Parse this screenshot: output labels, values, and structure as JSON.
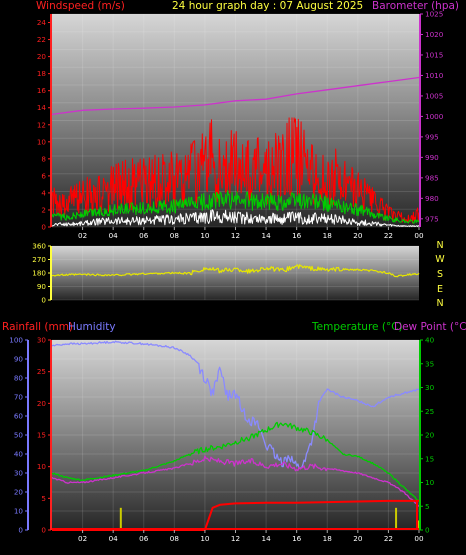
{
  "header": {
    "wind_label": "Windspeed (m/s)",
    "title": "24 hour graph day : 07 August 2025",
    "baro_label": "Barometer (hpa)",
    "rain_label": "Rainfall (mm)",
    "hum_label": "Humidity",
    "temp_label": "Temperature (°C)",
    "dew_label": "Dew Point (°C)"
  },
  "compass": [
    "N",
    "W",
    "S",
    "E",
    "N"
  ],
  "colors": {
    "wind_gust": "#ff0000",
    "wind_avg": "#00cc00",
    "wind_min": "#ffffff",
    "barometer": "#cc33cc",
    "direction": "#e6e600",
    "rainfall": "#ff0000",
    "humidity": "#8a8aff",
    "temperature": "#00cc00",
    "dew_point": "#cc33cc",
    "rain_marker": "#cccc00"
  },
  "chart_data": [
    {
      "type": "line",
      "x_ticks": [
        "02",
        "04",
        "06",
        "08",
        "10",
        "12",
        "14",
        "16",
        "18",
        "20",
        "22",
        "00"
      ],
      "xlim": [
        0,
        24
      ],
      "ylabel": "Windspeed (m/s)",
      "y2label": "Barometer (hpa)",
      "y_ticks": [
        "0",
        "2",
        "4",
        "6",
        "8",
        "10",
        "12",
        "14",
        "16",
        "18",
        "20",
        "22",
        "24"
      ],
      "ylim": [
        0,
        25
      ],
      "y2_ticks": [
        "975",
        "980",
        "985",
        "990",
        "995",
        "1000",
        "1005",
        "1010",
        "1015",
        "1020",
        "1025"
      ],
      "y2lim": [
        973,
        1025
      ],
      "series": [
        {
          "name": "gust",
          "x": [
            0,
            1,
            2,
            3,
            4,
            5,
            6,
            7,
            8,
            9,
            9.5,
            10,
            10.5,
            11,
            11.5,
            12,
            12.5,
            13,
            13.5,
            14,
            14.5,
            15,
            15.5,
            16,
            16.5,
            17,
            17.5,
            18,
            18.5,
            19,
            19.5,
            20,
            21,
            22,
            23,
            23.5,
            24
          ],
          "values": [
            3,
            2.8,
            3.5,
            4,
            4.5,
            5,
            5,
            5.5,
            5.5,
            6,
            6.5,
            7,
            8,
            7,
            8.5,
            7,
            7,
            6,
            7,
            6,
            7,
            6.5,
            8,
            8,
            7.5,
            6,
            5.5,
            5,
            6,
            5,
            4.5,
            4,
            3,
            1.5,
            1,
            1,
            1.5
          ]
        },
        {
          "name": "avg",
          "x": [
            0,
            1,
            2,
            3,
            4,
            5,
            6,
            7,
            8,
            9,
            10,
            11,
            12,
            13,
            14,
            15,
            16,
            17,
            18,
            19,
            20,
            21,
            22,
            23,
            24
          ],
          "values": [
            1.2,
            1.2,
            1.5,
            1.8,
            2.0,
            2.1,
            2.2,
            2.3,
            2.4,
            2.6,
            3.0,
            3.2,
            3.2,
            3.0,
            3.0,
            2.9,
            3.2,
            3.0,
            2.7,
            2.4,
            2.0,
            1.6,
            1.0,
            0.7,
            0.6
          ]
        },
        {
          "name": "min",
          "x": [
            0,
            1,
            2,
            3,
            4,
            5,
            6,
            7,
            8,
            9,
            10,
            11,
            12,
            13,
            14,
            15,
            16,
            17,
            18,
            19,
            20,
            21,
            22,
            23,
            24
          ],
          "values": [
            0.3,
            0.3,
            0.4,
            0.6,
            0.7,
            0.7,
            0.8,
            0.8,
            0.9,
            1.0,
            1.2,
            1.2,
            1.1,
            1.0,
            1.0,
            1.0,
            1.1,
            1.0,
            0.9,
            0.8,
            0.6,
            0.4,
            0.2,
            0.1,
            0.1
          ]
        },
        {
          "name": "barometer",
          "axis": "y2",
          "x": [
            0,
            2,
            4,
            6,
            8,
            10,
            12,
            14,
            16,
            18,
            20,
            22,
            24
          ],
          "values": [
            1000.5,
            1001.5,
            1001.8,
            1002.0,
            1002.3,
            1002.8,
            1003.8,
            1004.2,
            1005.5,
            1006.5,
            1007.5,
            1008.5,
            1009.5
          ]
        }
      ]
    },
    {
      "type": "line",
      "x_ticks": [
        "02",
        "04",
        "06",
        "08",
        "10",
        "12",
        "14",
        "16",
        "18",
        "20",
        "22",
        "00"
      ],
      "xlim": [
        0,
        24
      ],
      "ylabel": "Wind direction",
      "y_ticks": [
        "0",
        "90",
        "180",
        "270",
        "360"
      ],
      "ylim": [
        0,
        360
      ],
      "series": [
        {
          "name": "direction",
          "x": [
            0,
            2,
            4,
            6,
            8,
            9,
            10,
            11,
            12,
            13,
            14,
            15,
            16,
            17,
            18,
            19,
            20,
            21,
            22,
            22.5,
            23,
            24
          ],
          "values": [
            165,
            170,
            165,
            175,
            180,
            178,
            210,
            195,
            205,
            190,
            215,
            195,
            225,
            210,
            200,
            205,
            200,
            195,
            180,
            155,
            165,
            175
          ]
        }
      ]
    },
    {
      "type": "line",
      "x_ticks": [
        "02",
        "04",
        "06",
        "08",
        "10",
        "12",
        "14",
        "16",
        "18",
        "20",
        "22",
        "00"
      ],
      "xlim": [
        0,
        24
      ],
      "ylabel": "Rainfall (mm)",
      "y_ticks": [
        "0",
        "5",
        "10",
        "15",
        "20",
        "25",
        "30"
      ],
      "ylim": [
        0,
        30
      ],
      "y_ticks_humidity": [
        "0",
        "10",
        "20",
        "30",
        "40",
        "50",
        "60",
        "70",
        "80",
        "90",
        "100"
      ],
      "ylim_humidity": [
        0,
        100
      ],
      "y2label": "Temperature (°C)",
      "y2_ticks": [
        "0",
        "5",
        "10",
        "15",
        "20",
        "25",
        "30",
        "35",
        "40"
      ],
      "y2lim": [
        0,
        40
      ],
      "series": [
        {
          "name": "rainfall",
          "x": [
            0,
            10,
            10.5,
            11,
            12,
            14,
            16,
            18,
            20,
            22,
            23,
            24
          ],
          "values": [
            0,
            0,
            3.5,
            4,
            4.2,
            4.3,
            4.3,
            4.4,
            4.5,
            4.6,
            4.6,
            4.6
          ]
        },
        {
          "name": "humidity",
          "axis": "humidity",
          "x": [
            0,
            1,
            2,
            4,
            6,
            8,
            9,
            9.5,
            10,
            10.5,
            11,
            11.5,
            12,
            12.5,
            13,
            13.5,
            14,
            14.5,
            15,
            15.5,
            16,
            16.5,
            17,
            17.5,
            18,
            19,
            20,
            21,
            22,
            23,
            24
          ],
          "values": [
            97,
            98,
            98,
            99,
            98,
            96,
            92,
            88,
            80,
            72,
            84,
            70,
            72,
            62,
            58,
            55,
            45,
            40,
            35,
            40,
            33,
            35,
            48,
            68,
            74,
            70,
            68,
            65,
            70,
            72,
            74
          ]
        },
        {
          "name": "temperature",
          "axis": "y2",
          "x": [
            0,
            1,
            2,
            3,
            4,
            5,
            6,
            7,
            8,
            9,
            10,
            11,
            12,
            13,
            14,
            15,
            16,
            17,
            18,
            19,
            20,
            21,
            22,
            23,
            24
          ],
          "values": [
            12,
            11,
            10.5,
            11,
            11.5,
            12,
            12.5,
            13.5,
            14.5,
            16,
            17,
            17.5,
            18.5,
            19.5,
            21,
            22.5,
            21.5,
            20.5,
            19,
            16,
            15.5,
            14,
            12,
            9,
            6
          ]
        },
        {
          "name": "dew_point",
          "axis": "y2",
          "x": [
            0,
            1,
            2,
            3,
            4,
            5,
            6,
            7,
            8,
            9,
            10,
            11,
            12,
            13,
            14,
            15,
            16,
            17,
            18,
            19,
            20,
            21,
            22,
            23,
            24
          ],
          "values": [
            11,
            10,
            10,
            10.5,
            11,
            11.5,
            12,
            12.5,
            13,
            14,
            15,
            14.5,
            14,
            14.5,
            13.5,
            14,
            13,
            13.5,
            13,
            12.5,
            12,
            11,
            10,
            8,
            5
          ]
        },
        {
          "name": "rain_rate",
          "type": "bar",
          "x": [
            4.5,
            22.5,
            24
          ],
          "values": [
            3.5,
            3.5,
            1.5
          ]
        }
      ]
    }
  ]
}
